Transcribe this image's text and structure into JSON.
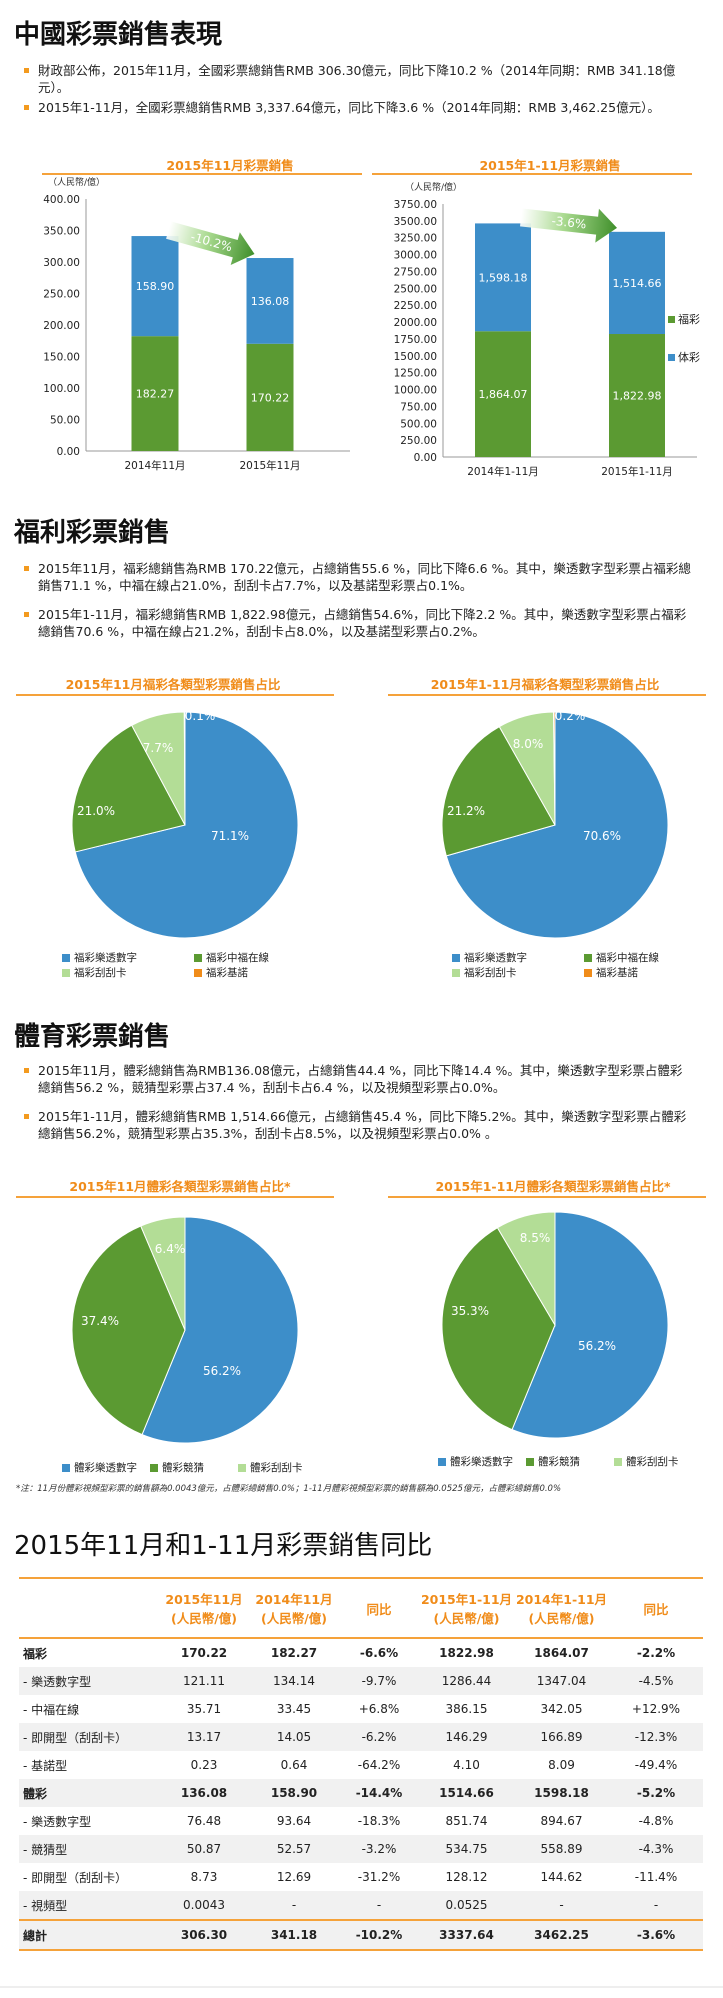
{
  "sections": {
    "s1": {
      "title": "中國彩票銷售表現",
      "bullets": [
        "財政部公佈，2015年11月，全國彩票總銷售RMB 306.30億元，同比下降10.2 %（2014年同期：RMB 341.18億元）。",
        "2015年1-11月，全國彩票總銷售RMB 3,337.64億元，同比下降3.6 %（2014年同期：RMB 3,462.25億元）。"
      ]
    },
    "s2": {
      "title": "福利彩票銷售",
      "bullets": [
        "2015年11月，福彩總銷售為RMB 170.22億元，占總銷售55.6 %，同比下降6.6 %。其中，樂透數字型彩票占福彩總銷售71.1 %，中福在線占21.0%，刮刮卡占7.7%，以及基諾型彩票占0.1%。",
        "2015年1-11月，福彩總銷售RMB 1,822.98億元，占總銷售54.6%，同比下降2.2 %。其中，樂透數字型彩票占福彩總銷售70.6 %，中福在線占21.2%，刮刮卡占8.0%，以及基諾型彩票占0.2%。"
      ]
    },
    "s3": {
      "title": "體育彩票銷售",
      "bullets": [
        "2015年11月，體彩總銷售為RMB136.08億元，占總銷售44.4 %，同比下降14.4 %。其中，樂透數字型彩票占體彩總銷售56.2 %，競猜型彩票占37.4 %，刮刮卡占6.4 %，以及視頻型彩票占0.0%。",
        "2015年1-11月，體彩總銷售RMB 1,514.66億元，占總銷售45.4 %，同比下降5.2%。其中，樂透數字型彩票占體彩總銷售56.2%，競猜型彩票占35.3%，刮刮卡占8.5%，以及視頻型彩票占0.0% 。"
      ]
    },
    "s4": {
      "title": "2015年11月和1-11月彩票銷售同比"
    }
  },
  "colors": {
    "fucai": "#5b9a32",
    "ticai": "#3d8ec9",
    "scratch": "#b3dd96",
    "keno": "#f08c1a",
    "accent": "#f08c1a"
  },
  "chart_data": [
    {
      "type": "bar",
      "stacked": true,
      "title": "2015年11月彩票銷售",
      "ylabel": "（人民幣/億）",
      "categories": [
        "2014年11月",
        "2015年11月"
      ],
      "ylim": [
        0,
        400
      ],
      "yticks": [
        "0.00",
        "50.00",
        "100.00",
        "150.00",
        "200.00",
        "250.00",
        "300.00",
        "350.00",
        "400.00"
      ],
      "series": [
        {
          "name": "福彩",
          "values": [
            182.27,
            170.22
          ],
          "labels": [
            "182.27",
            "170.22"
          ]
        },
        {
          "name": "体彩",
          "values": [
            158.9,
            136.08
          ],
          "labels": [
            "158.90",
            "136.08"
          ]
        }
      ],
      "annotation": "-10.2%"
    },
    {
      "type": "bar",
      "stacked": true,
      "title": "2015年1-11月彩票銷售",
      "ylabel": "（人民幣/億）",
      "categories": [
        "2014年1-11月",
        "2015年1-11月"
      ],
      "ylim": [
        0,
        3750
      ],
      "yticks": [
        "0.00",
        "250.00",
        "500.00",
        "750.00",
        "1000.00",
        "1250.00",
        "1500.00",
        "1750.00",
        "2000.00",
        "2250.00",
        "2500.00",
        "2750.00",
        "3000.00",
        "3250.00",
        "3500.00",
        "3750.00"
      ],
      "series": [
        {
          "name": "福彩",
          "values": [
            1864.07,
            1822.98
          ],
          "labels": [
            "1,864.07",
            "1,822.98"
          ]
        },
        {
          "name": "体彩",
          "values": [
            1598.18,
            1514.66
          ],
          "labels": [
            "1,598.18",
            "1,514.66"
          ]
        }
      ],
      "annotation": "-3.6%",
      "legend": [
        "福彩",
        "体彩"
      ]
    },
    {
      "type": "pie",
      "title": "2015年11月福彩各類型彩票銷售占比",
      "labels": [
        "福彩樂透數字",
        "福彩中福在線",
        "福彩刮刮卡",
        "福彩基諾"
      ],
      "values": [
        71.1,
        21.0,
        7.7,
        0.1
      ],
      "value_labels": [
        "71.1%",
        "21.0%",
        "7.7%",
        "0.1%"
      ]
    },
    {
      "type": "pie",
      "title": "2015年1-11月福彩各類型彩票銷售占比",
      "labels": [
        "福彩樂透數字",
        "福彩中福在線",
        "福彩刮刮卡",
        "福彩基諾"
      ],
      "values": [
        70.6,
        21.2,
        8.0,
        0.2
      ],
      "value_labels": [
        "70.6%",
        "21.2%",
        "8.0%",
        "0.2%"
      ]
    },
    {
      "type": "pie",
      "title": "2015年11月體彩各類型彩票銷售占比*",
      "labels": [
        "體彩樂透數字",
        "體彩競猜",
        "體彩刮刮卡"
      ],
      "values": [
        56.2,
        37.4,
        6.4
      ],
      "value_labels": [
        "56.2%",
        "37.4%",
        "6.4%"
      ]
    },
    {
      "type": "pie",
      "title": "2015年1-11月體彩各類型彩票銷售占比*",
      "labels": [
        "體彩樂透數字",
        "體彩競猜",
        "體彩刮刮卡"
      ],
      "values": [
        56.2,
        35.3,
        8.5
      ],
      "value_labels": [
        "56.2%",
        "35.3%",
        "8.5%"
      ]
    }
  ],
  "note": "*注：11月份體彩視頻型彩票的銷售額為0.0043億元，占體彩總銷售0.0%；1-11月體彩視頻型彩票的銷售額為0.0525億元，占體彩總銷售0.0%",
  "table": {
    "headers": [
      "",
      "2015年11月(人民幣/億)",
      "2014年11月(人民幣/億)",
      "同比",
      "2015年1-11月(人民幣/億)",
      "2014年1-11月(人民幣/億)",
      "同比"
    ],
    "rows": [
      [
        "福彩",
        "170.22",
        "182.27",
        "-6.6%",
        "1822.98",
        "1864.07",
        "-2.2%"
      ],
      [
        "- 樂透數字型",
        "121.11",
        "134.14",
        "-9.7%",
        "1286.44",
        "1347.04",
        "-4.5%"
      ],
      [
        "- 中福在線",
        "35.71",
        "33.45",
        "+6.8%",
        "386.15",
        "342.05",
        "+12.9%"
      ],
      [
        "- 即開型（刮刮卡）",
        "13.17",
        "14.05",
        "-6.2%",
        "146.29",
        "166.89",
        "-12.3%"
      ],
      [
        "- 基諾型",
        "0.23",
        "0.64",
        "-64.2%",
        "4.10",
        "8.09",
        "-49.4%"
      ],
      [
        "體彩",
        "136.08",
        "158.90",
        "-14.4%",
        "1514.66",
        "1598.18",
        "-5.2%"
      ],
      [
        "- 樂透數字型",
        "76.48",
        "93.64",
        "-18.3%",
        "851.74",
        "894.67",
        "-4.8%"
      ],
      [
        "- 競猜型",
        "50.87",
        "52.57",
        "-3.2%",
        "534.75",
        "558.89",
        "-4.3%"
      ],
      [
        "- 即開型（刮刮卡）",
        "8.73",
        "12.69",
        "-31.2%",
        "128.12",
        "144.62",
        "-11.4%"
      ],
      [
        "- 視頻型",
        "0.0043",
        "-",
        "-",
        "0.0525",
        "-",
        "-"
      ],
      [
        "總計",
        "306.30",
        "341.18",
        "-10.2%",
        "3337.64",
        "3462.25",
        "-3.6%"
      ]
    ]
  }
}
